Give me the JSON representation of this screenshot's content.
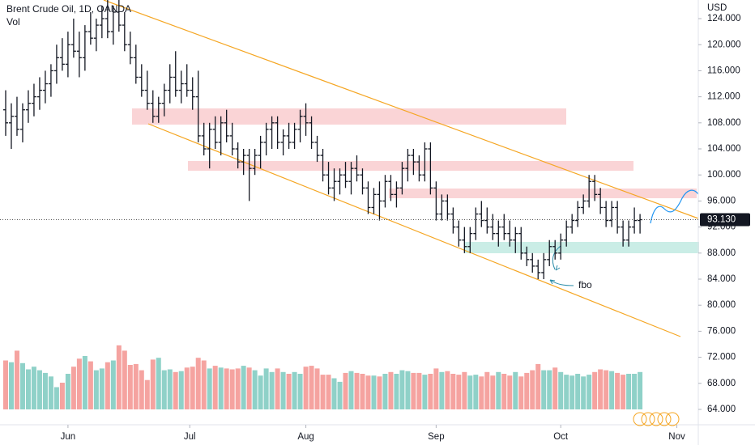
{
  "chart_data": {
    "type": "ohlc",
    "title": "Brent Crude Oil, 1D, OANDA",
    "volume_label": "Vol",
    "currency": "USD",
    "annotation": "fbo",
    "ylim": [
      62.26,
      126.86
    ],
    "xlim": [
      -1,
      122
    ],
    "yticks": [
      {
        "value": 64,
        "label": "64.000"
      },
      {
        "value": 68,
        "label": "68.000"
      },
      {
        "value": 72,
        "label": "72.000"
      },
      {
        "value": 76,
        "label": "76.000"
      },
      {
        "value": 80,
        "label": "80.000"
      },
      {
        "value": 84,
        "label": "84.000"
      },
      {
        "value": 88,
        "label": "88.000"
      },
      {
        "value": 92,
        "label": "92.000"
      },
      {
        "value": 96,
        "label": "96.000"
      },
      {
        "value": 100,
        "label": "100.000"
      },
      {
        "value": 104,
        "label": "104.000"
      },
      {
        "value": 108,
        "label": "108.000"
      },
      {
        "value": 112,
        "label": "112.000"
      },
      {
        "value": 116,
        "label": "116.000"
      },
      {
        "value": 120,
        "label": "120.000"
      },
      {
        "value": 124,
        "label": "124.000"
      }
    ],
    "xticks": [
      {
        "value": 11,
        "label": "Jun"
      },
      {
        "value": 32.5,
        "label": "Jul"
      },
      {
        "value": 53,
        "label": "Aug"
      },
      {
        "value": 76,
        "label": "Sep"
      },
      {
        "value": 98,
        "label": "Oct"
      },
      {
        "value": 118.5,
        "label": "Nov"
      }
    ],
    "last_price": {
      "value": 93.13,
      "label": "93.130"
    },
    "bar_color": "#131722",
    "up_volume_color": "#8fd1c8",
    "down_volume_color": "#f5a3a0",
    "ohlc": [
      [
        110,
        113,
        106,
        108
      ],
      [
        108,
        111,
        104,
        109
      ],
      [
        109,
        112,
        106,
        107
      ],
      [
        107,
        111,
        105,
        110
      ],
      [
        110,
        113,
        108,
        111
      ],
      [
        111,
        114,
        109,
        112
      ],
      [
        112,
        115,
        110,
        113
      ],
      [
        113,
        116,
        111,
        114
      ],
      [
        114,
        117,
        112,
        116
      ],
      [
        116,
        120,
        114,
        118
      ],
      [
        118,
        121,
        116,
        117
      ],
      [
        117,
        122,
        115,
        120
      ],
      [
        120,
        124,
        118,
        119
      ],
      [
        119,
        122,
        115,
        118
      ],
      [
        118,
        123,
        116,
        122
      ],
      [
        122,
        125,
        120,
        121
      ],
      [
        121,
        124,
        119,
        123
      ],
      [
        123,
        126,
        121,
        124
      ],
      [
        124,
        127,
        121,
        122
      ],
      [
        122,
        126,
        120,
        125
      ],
      [
        125,
        127,
        122,
        123
      ],
      [
        123,
        125,
        119,
        120
      ],
      [
        120,
        122,
        117,
        118
      ],
      [
        118,
        120,
        114,
        115
      ],
      [
        115,
        117,
        112,
        113
      ],
      [
        113,
        116,
        110,
        111
      ],
      [
        111,
        113,
        108,
        109
      ],
      [
        109,
        112,
        108,
        111
      ],
      [
        111,
        114,
        109,
        113
      ],
      [
        113,
        117,
        111,
        115
      ],
      [
        115,
        119,
        112,
        113
      ],
      [
        113,
        116,
        111,
        114
      ],
      [
        114,
        117,
        112,
        113
      ],
      [
        113,
        115,
        110,
        112
      ],
      [
        112,
        116,
        105,
        106
      ],
      [
        106,
        108,
        103,
        104
      ],
      [
        104,
        108,
        101,
        107
      ],
      [
        107,
        109,
        104,
        105
      ],
      [
        105,
        109,
        103,
        108
      ],
      [
        108,
        110,
        105,
        106
      ],
      [
        106,
        108,
        103,
        104
      ],
      [
        104,
        105,
        101,
        102
      ],
      [
        102,
        104,
        100,
        103
      ],
      [
        103,
        104,
        96,
        101
      ],
      [
        101,
        104,
        100,
        103
      ],
      [
        103,
        106,
        101,
        105
      ],
      [
        105,
        108,
        103,
        107
      ],
      [
        107,
        109,
        104,
        108
      ],
      [
        108,
        109,
        104,
        105
      ],
      [
        105,
        107,
        103,
        106
      ],
      [
        106,
        108,
        104,
        105
      ],
      [
        105,
        108,
        104,
        107
      ],
      [
        107,
        110,
        105,
        109
      ],
      [
        109,
        111,
        106,
        108
      ],
      [
        108,
        109,
        104,
        105
      ],
      [
        105,
        106,
        102,
        103
      ],
      [
        103,
        104,
        99,
        100
      ],
      [
        100,
        102,
        97,
        98
      ],
      [
        98,
        101,
        96,
        99
      ],
      [
        99,
        101,
        97,
        100
      ],
      [
        100,
        102,
        98,
        99
      ],
      [
        99,
        102,
        97,
        101
      ],
      [
        101,
        103,
        99,
        100
      ],
      [
        100,
        101,
        97,
        98
      ],
      [
        98,
        99,
        94,
        95
      ],
      [
        95,
        98,
        94,
        97
      ],
      [
        97,
        99,
        93,
        96
      ],
      [
        96,
        100,
        95,
        99
      ],
      [
        99,
        100,
        96,
        97
      ],
      [
        97,
        99,
        95,
        98
      ],
      [
        98,
        102,
        97,
        101
      ],
      [
        101,
        104,
        99,
        103
      ],
      [
        103,
        104,
        100,
        102
      ],
      [
        102,
        103,
        99,
        100
      ],
      [
        100,
        105,
        99,
        104
      ],
      [
        104,
        105,
        97,
        98
      ],
      [
        98,
        99,
        93,
        94
      ],
      [
        94,
        97,
        93,
        96
      ],
      [
        96,
        97,
        93,
        94
      ],
      [
        94,
        95,
        91,
        92
      ],
      [
        92,
        93,
        89,
        90
      ],
      [
        90,
        92,
        88,
        89
      ],
      [
        89,
        92,
        88,
        91
      ],
      [
        91,
        95,
        90,
        94
      ],
      [
        94,
        96,
        92,
        93
      ],
      [
        93,
        95,
        91,
        92
      ],
      [
        92,
        94,
        90,
        91
      ],
      [
        91,
        93,
        89,
        92
      ],
      [
        92,
        94,
        90,
        91
      ],
      [
        91,
        93,
        89,
        90
      ],
      [
        90,
        92,
        88,
        91
      ],
      [
        91,
        92,
        87,
        88
      ],
      [
        88,
        89,
        86,
        87
      ],
      [
        87,
        88,
        85,
        86
      ],
      [
        86,
        87,
        84,
        85
      ],
      [
        85,
        88,
        84,
        87
      ],
      [
        87,
        90,
        86,
        89
      ],
      [
        89,
        90,
        87,
        88
      ],
      [
        88,
        91,
        87,
        90
      ],
      [
        90,
        93,
        89,
        92
      ],
      [
        92,
        94,
        91,
        93
      ],
      [
        93,
        96,
        92,
        95
      ],
      [
        95,
        97,
        94,
        96
      ],
      [
        96,
        100,
        95,
        99
      ],
      [
        99,
        100,
        96,
        97
      ],
      [
        97,
        98,
        94,
        95
      ],
      [
        95,
        96,
        92,
        93
      ],
      [
        93,
        96,
        92,
        95
      ],
      [
        95,
        96,
        91,
        92
      ],
      [
        92,
        93,
        89,
        90
      ],
      [
        90,
        93,
        89,
        92
      ],
      [
        92,
        95,
        91,
        93
      ],
      [
        93,
        94,
        91,
        93.13
      ]
    ],
    "volume": [
      55,
      53,
      66,
      52,
      45,
      48,
      44,
      41,
      37,
      25,
      30,
      40,
      48,
      57,
      60,
      54,
      44,
      46,
      53,
      55,
      72,
      66,
      50,
      51,
      44,
      33,
      56,
      58,
      44,
      45,
      42,
      43,
      47,
      48,
      58,
      55,
      46,
      49,
      47,
      46,
      45,
      46,
      49,
      47,
      44,
      38,
      46,
      42,
      46,
      42,
      40,
      42,
      40,
      48,
      49,
      46,
      39,
      39,
      35,
      31,
      41,
      43,
      41,
      40,
      38,
      38,
      37,
      40,
      42,
      40,
      44,
      43,
      41,
      41,
      39,
      40,
      46,
      42,
      43,
      40,
      39,
      42,
      38,
      39,
      37,
      42,
      38,
      42,
      40,
      38,
      42,
      37,
      41,
      44,
      51,
      44,
      44,
      47,
      42,
      39,
      38,
      40,
      37,
      39,
      42,
      45,
      44,
      43,
      41,
      39,
      40,
      40,
      42
    ]
  }
}
